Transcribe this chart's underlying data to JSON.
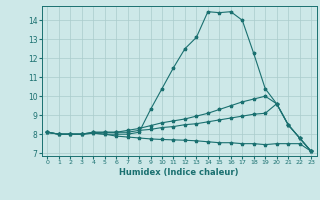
{
  "xlabel": "Humidex (Indice chaleur)",
  "ylabel": "",
  "background_color": "#cde8e8",
  "grid_color": "#aacccc",
  "line_color": "#1a7070",
  "xlim": [
    -0.5,
    23.5
  ],
  "ylim": [
    6.85,
    14.75
  ],
  "xticks": [
    0,
    1,
    2,
    3,
    4,
    5,
    6,
    7,
    8,
    9,
    10,
    11,
    12,
    13,
    14,
    15,
    16,
    17,
    18,
    19,
    20,
    21,
    22,
    23
  ],
  "yticks": [
    7,
    8,
    9,
    10,
    11,
    12,
    13,
    14
  ],
  "series": [
    [
      8.1,
      8.0,
      8.0,
      8.0,
      8.05,
      8.0,
      8.0,
      8.0,
      8.1,
      9.3,
      10.4,
      11.5,
      12.5,
      13.1,
      14.45,
      14.4,
      14.45,
      14.0,
      12.25,
      10.4,
      9.6,
      8.5,
      7.8,
      7.1
    ],
    [
      8.1,
      8.0,
      8.0,
      8.0,
      8.1,
      8.1,
      8.1,
      8.2,
      8.3,
      8.45,
      8.6,
      8.7,
      8.8,
      8.95,
      9.1,
      9.3,
      9.5,
      9.7,
      9.85,
      10.0,
      9.6,
      8.5,
      7.8,
      7.1
    ],
    [
      8.1,
      8.0,
      8.0,
      8.0,
      8.1,
      8.1,
      8.1,
      8.1,
      8.2,
      8.25,
      8.35,
      8.4,
      8.5,
      8.55,
      8.65,
      8.75,
      8.85,
      8.95,
      9.05,
      9.1,
      9.6,
      8.5,
      7.8,
      7.1
    ],
    [
      8.1,
      8.0,
      8.0,
      8.0,
      8.05,
      8.0,
      7.9,
      7.85,
      7.8,
      7.75,
      7.72,
      7.7,
      7.68,
      7.65,
      7.6,
      7.55,
      7.55,
      7.5,
      7.5,
      7.45,
      7.5,
      7.5,
      7.5,
      7.1
    ]
  ]
}
